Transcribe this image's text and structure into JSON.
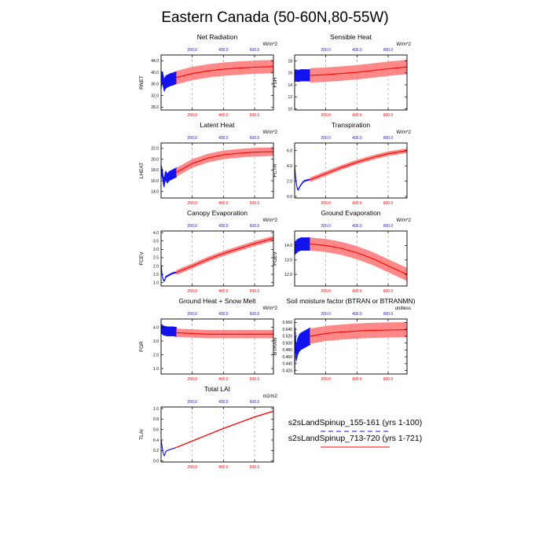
{
  "figure": {
    "title": "Eastern Canada (50-60N,80-55W)",
    "colors": {
      "short_run": "#1414ee",
      "long_run": "#ff0000",
      "long_band": "#ff8080",
      "grid": "#999999"
    }
  },
  "legend": {
    "entries": [
      {
        "label": "s2sLandSpinup_155-161 (yrs 1-100)",
        "color": "#1414ee",
        "style": "dashed"
      },
      {
        "label": "s2sLandSpinup_713-720 (yrs 1-721)",
        "color": "#ff0000",
        "style": "solid"
      }
    ]
  },
  "chart_data": [
    {
      "type": "line",
      "title": "Net Radiation",
      "ylabel": "RNET",
      "units": "W/m^2",
      "xlim": [
        0,
        721
      ],
      "ylim": [
        27,
        46
      ],
      "yticks": [
        28.0,
        32.0,
        36.0,
        40.0,
        44.0
      ],
      "ytick_labels": [
        "28.0",
        "32.0",
        "36.0",
        "40.0",
        "44.0"
      ],
      "top_xticks": [
        200,
        400,
        600
      ],
      "top_xtick_labels": [
        "200.0",
        "400.0",
        "600.0"
      ],
      "bottom_xticks": [
        200,
        400,
        600
      ],
      "bottom_xtick_labels": [
        "200.0",
        "400.0",
        "600.0"
      ],
      "series": [
        {
          "run": "short",
          "x": [
            1,
            5,
            10,
            15,
            20,
            25,
            30,
            40,
            50,
            60,
            70,
            80,
            90,
            100
          ],
          "y": [
            36.5,
            38.2,
            37.8,
            36.8,
            35.4,
            36.2,
            36.6,
            37.0,
            37.2,
            37.5,
            37.6,
            37.8,
            38.0,
            38.2
          ],
          "spread": 2.2
        },
        {
          "run": "long",
          "x": [
            100,
            200,
            300,
            400,
            500,
            600,
            721
          ],
          "y": [
            38.2,
            39.6,
            40.5,
            41.1,
            41.5,
            41.8,
            42.0
          ],
          "spread": 2.3
        }
      ]
    },
    {
      "type": "line",
      "title": "Sensible Heat",
      "ylabel": "FSH",
      "units": "W/m^2",
      "xlim": [
        0,
        721
      ],
      "ylim": [
        9.8,
        19
      ],
      "yticks": [
        10,
        12,
        14,
        16,
        18
      ],
      "ytick_labels": [
        "10",
        "12",
        "14",
        "16",
        "18"
      ],
      "top_xticks": [
        200,
        400,
        600
      ],
      "top_xtick_labels": [
        "200.0",
        "400.0",
        "600.0"
      ],
      "bottom_xticks": [
        200,
        400,
        600
      ],
      "bottom_xtick_labels": [
        "200.0",
        "400.0",
        "600.0"
      ],
      "series": [
        {
          "run": "short",
          "x": [
            1,
            10,
            20,
            40,
            60,
            80,
            100
          ],
          "y": [
            15.5,
            15.6,
            15.5,
            15.6,
            15.6,
            15.6,
            15.6
          ],
          "spread": 1.0
        },
        {
          "run": "long",
          "x": [
            100,
            200,
            300,
            400,
            500,
            600,
            721
          ],
          "y": [
            15.6,
            15.7,
            15.9,
            16.1,
            16.4,
            16.7,
            17.0
          ],
          "spread": 1.2
        }
      ]
    },
    {
      "type": "line",
      "title": "Latent Heat",
      "ylabel": "LHEAT",
      "units": "W/m^2",
      "xlim": [
        0,
        721
      ],
      "ylim": [
        12.8,
        23
      ],
      "yticks": [
        14.0,
        16.0,
        18.0,
        20.0,
        22.0
      ],
      "ytick_labels": [
        "14.0",
        "16.0",
        "18.0",
        "20.0",
        "22.0"
      ],
      "top_xticks": [
        200,
        400,
        600
      ],
      "top_xtick_labels": [
        "200.0",
        "400.0",
        "600.0"
      ],
      "bottom_xticks": [
        200,
        400,
        600
      ],
      "bottom_xtick_labels": [
        "200.0",
        "400.0",
        "600.0"
      ],
      "series": [
        {
          "run": "short",
          "x": [
            1,
            5,
            10,
            15,
            20,
            25,
            30,
            40,
            50,
            60,
            70,
            80,
            90,
            100
          ],
          "y": [
            18.0,
            17.6,
            17.0,
            16.0,
            15.6,
            16.5,
            17.0,
            16.4,
            16.8,
            17.0,
            17.1,
            17.3,
            17.4,
            17.6
          ],
          "spread": 0.9
        },
        {
          "run": "long",
          "x": [
            100,
            200,
            300,
            400,
            500,
            600,
            721
          ],
          "y": [
            17.6,
            19.2,
            20.2,
            20.8,
            21.1,
            21.3,
            21.4
          ],
          "spread": 0.8
        }
      ]
    },
    {
      "type": "line",
      "title": "Transpiration",
      "ylabel": "FCTR",
      "units": "W/m^2",
      "xlim": [
        0,
        721
      ],
      "ylim": [
        -0.2,
        7
      ],
      "yticks": [
        0.0,
        2.0,
        4.0,
        6.0
      ],
      "ytick_labels": [
        "0.0",
        "2.0",
        "4.0",
        "6.0"
      ],
      "top_xticks": [
        200,
        400,
        600
      ],
      "top_xtick_labels": [
        "200.0",
        "400.0",
        "600.0"
      ],
      "bottom_xticks": [
        200,
        400,
        600
      ],
      "bottom_xtick_labels": [
        "200.0",
        "400.0",
        "600.0"
      ],
      "series": [
        {
          "run": "short",
          "x": [
            1,
            5,
            10,
            15,
            20,
            25,
            30,
            40,
            50,
            60,
            70,
            80,
            90,
            100
          ],
          "y": [
            3.8,
            2.8,
            1.8,
            1.2,
            0.9,
            0.9,
            1.2,
            1.5,
            1.8,
            2.0,
            2.1,
            2.1,
            2.2,
            2.2
          ],
          "spread": 0.1
        },
        {
          "run": "long",
          "x": [
            100,
            200,
            300,
            400,
            500,
            600,
            721
          ],
          "y": [
            2.2,
            3.0,
            3.8,
            4.5,
            5.1,
            5.6,
            6.0
          ],
          "spread": 0.3
        }
      ]
    },
    {
      "type": "line",
      "title": "Canopy Evaporation",
      "ylabel": "FCEV",
      "units": "W/m^2",
      "xlim": [
        0,
        721
      ],
      "ylim": [
        0.8,
        4.1
      ],
      "yticks": [
        1.0,
        1.5,
        2.0,
        2.5,
        3.0,
        3.5,
        4.0
      ],
      "ytick_labels": [
        "1.0",
        "1.5",
        "2.0",
        "2.5",
        "3.0",
        "3.5",
        "4.0"
      ],
      "top_xticks": [
        200,
        400,
        600
      ],
      "top_xtick_labels": [
        "200.0",
        "400.0",
        "600.0"
      ],
      "bottom_xticks": [
        200,
        400,
        600
      ],
      "bottom_xtick_labels": [
        "200.0",
        "400.0",
        "600.0"
      ],
      "series": [
        {
          "run": "short",
          "x": [
            1,
            5,
            10,
            15,
            20,
            25,
            30,
            40,
            50,
            60,
            70,
            80,
            90,
            100
          ],
          "y": [
            2.0,
            1.6,
            1.3,
            1.15,
            1.1,
            1.2,
            1.35,
            1.4,
            1.45,
            1.5,
            1.55,
            1.58,
            1.6,
            1.62
          ],
          "spread": 0.05
        },
        {
          "run": "long",
          "x": [
            100,
            200,
            300,
            400,
            500,
            600,
            721
          ],
          "y": [
            1.62,
            2.0,
            2.4,
            2.75,
            3.05,
            3.35,
            3.65
          ],
          "spread": 0.15
        }
      ]
    },
    {
      "type": "line",
      "title": "Ground Evaporation",
      "ylabel": "FGEV",
      "units": "W/m^2",
      "xlim": [
        0,
        721
      ],
      "ylim": [
        11.2,
        15
      ],
      "yticks": [
        12.0,
        13.0,
        14.0
      ],
      "ytick_labels": [
        "12.0",
        "13.0",
        "14.0"
      ],
      "top_xticks": [
        200,
        400,
        600
      ],
      "top_xtick_labels": [
        "200.0",
        "400.0",
        "600.0"
      ],
      "bottom_xticks": [
        200,
        400,
        600
      ],
      "bottom_xtick_labels": [
        "200.0",
        "400.0",
        "600.0"
      ],
      "series": [
        {
          "run": "short",
          "x": [
            1,
            10,
            20,
            40,
            60,
            80,
            100
          ],
          "y": [
            13.8,
            13.9,
            14.0,
            14.1,
            14.1,
            14.1,
            14.1
          ],
          "spread": 0.45
        },
        {
          "run": "long",
          "x": [
            100,
            200,
            300,
            400,
            500,
            600,
            721
          ],
          "y": [
            14.1,
            14.0,
            13.8,
            13.5,
            13.1,
            12.6,
            12.0
          ],
          "spread": 0.45
        }
      ]
    },
    {
      "type": "line",
      "title": "Ground Heat + Snow Melt",
      "ylabel": "FGR",
      "units": "W/m^2",
      "xlim": [
        0,
        721
      ],
      "ylim": [
        0.6,
        4.6
      ],
      "yticks": [
        1.0,
        2.0,
        3.0,
        4.0
      ],
      "ytick_labels": [
        "1.0",
        "2.0",
        "3.0",
        "4.0"
      ],
      "top_xticks": [
        200,
        400,
        600
      ],
      "top_xtick_labels": [
        "200.0",
        "400.0",
        "600.0"
      ],
      "bottom_xticks": [
        200,
        400,
        600
      ],
      "bottom_xtick_labels": [
        "200.0",
        "400.0",
        "600.0"
      ],
      "series": [
        {
          "run": "short",
          "x": [
            1,
            10,
            20,
            40,
            60,
            80,
            100
          ],
          "y": [
            3.9,
            3.8,
            3.75,
            3.7,
            3.7,
            3.7,
            3.65
          ],
          "spread": 0.35
        },
        {
          "run": "long",
          "x": [
            100,
            200,
            300,
            400,
            500,
            600,
            721
          ],
          "y": [
            3.6,
            3.55,
            3.5,
            3.5,
            3.5,
            3.5,
            3.5
          ],
          "spread": 0.3
        }
      ]
    },
    {
      "type": "line",
      "title": "Soil moisture factor (BTRAN or BTRANMN)",
      "ylabel": "BTRAN",
      "units": "unitless",
      "xlim": [
        0,
        721
      ],
      "ylim": [
        0.41,
        0.57
      ],
      "yticks": [
        0.42,
        0.44,
        0.46,
        0.48,
        0.5,
        0.52,
        0.54,
        0.56
      ],
      "ytick_labels": [
        "0.420",
        "0.440",
        "0.460",
        "0.480",
        "0.500",
        "0.520",
        "0.540",
        "0.560"
      ],
      "top_xticks": [
        200,
        400,
        600
      ],
      "top_xtick_labels": [
        "200.0",
        "400.0",
        "600.0"
      ],
      "bottom_xticks": [
        200,
        400,
        600
      ],
      "bottom_xtick_labels": [
        "200.0",
        "400.0",
        "600.0"
      ],
      "series": [
        {
          "run": "short",
          "x": [
            1,
            3,
            6,
            10,
            15,
            20,
            30,
            40,
            60,
            80,
            100
          ],
          "y": [
            0.44,
            0.52,
            0.5,
            0.47,
            0.48,
            0.49,
            0.5,
            0.505,
            0.51,
            0.515,
            0.52
          ],
          "spread": 0.025
        },
        {
          "run": "long",
          "x": [
            100,
            200,
            300,
            400,
            500,
            600,
            721
          ],
          "y": [
            0.52,
            0.528,
            0.532,
            0.535,
            0.537,
            0.538,
            0.539
          ],
          "spread": 0.022
        }
      ]
    },
    {
      "type": "line",
      "title": "Total LAI",
      "ylabel": "TLAI",
      "units": "m2/m2",
      "xlim": [
        0,
        721
      ],
      "ylim": [
        -0.02,
        1.03
      ],
      "yticks": [
        0.0,
        0.2,
        0.4,
        0.6,
        0.8,
        1.0
      ],
      "ytick_labels": [
        "0.0",
        "0.2",
        "0.4",
        "0.6",
        "0.8",
        "1.0"
      ],
      "top_xticks": [
        200,
        400,
        600
      ],
      "top_xtick_labels": [
        "200.0",
        "400.0",
        "600.0"
      ],
      "bottom_xticks": [
        200,
        400,
        600
      ],
      "bottom_xtick_labels": [
        "200.0",
        "400.0",
        "600.0"
      ],
      "series": [
        {
          "run": "short",
          "x": [
            1,
            5,
            10,
            15,
            20,
            25,
            30,
            40,
            50,
            60,
            70,
            80,
            90,
            100
          ],
          "y": [
            0.4,
            0.3,
            0.2,
            0.13,
            0.1,
            0.13,
            0.18,
            0.2,
            0.21,
            0.22,
            0.23,
            0.24,
            0.25,
            0.26
          ],
          "spread": 0.005
        },
        {
          "run": "long",
          "x": [
            100,
            200,
            300,
            400,
            500,
            600,
            721
          ],
          "y": [
            0.26,
            0.38,
            0.5,
            0.62,
            0.73,
            0.84,
            0.95
          ],
          "spread": 0.012
        }
      ]
    }
  ]
}
